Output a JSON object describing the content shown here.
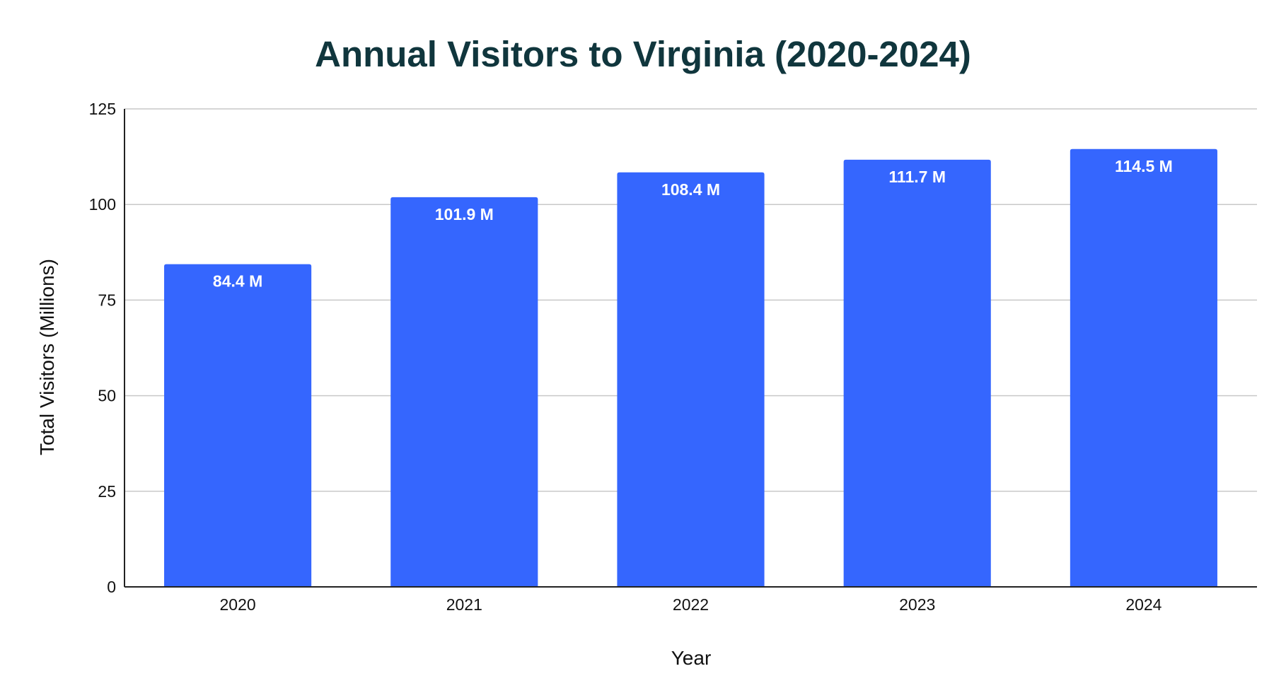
{
  "chart_data": {
    "type": "bar",
    "title": "Annual Visitors to Virginia (2020-2024)",
    "xlabel": "Year",
    "ylabel": "Total Visitors (Millions)",
    "categories": [
      "2020",
      "2021",
      "2022",
      "2023",
      "2024"
    ],
    "values": [
      84.4,
      101.9,
      108.4,
      111.7,
      114.5
    ],
    "data_labels": [
      "84.4 M",
      "101.9 M",
      "108.4 M",
      "111.7 M",
      "114.5 M"
    ],
    "ylim": [
      0,
      125
    ],
    "yticks": [
      0,
      25,
      50,
      75,
      100,
      125
    ],
    "grid": true,
    "legend": "none",
    "bar_color": "#3566fe",
    "title_color": "#10363d"
  }
}
